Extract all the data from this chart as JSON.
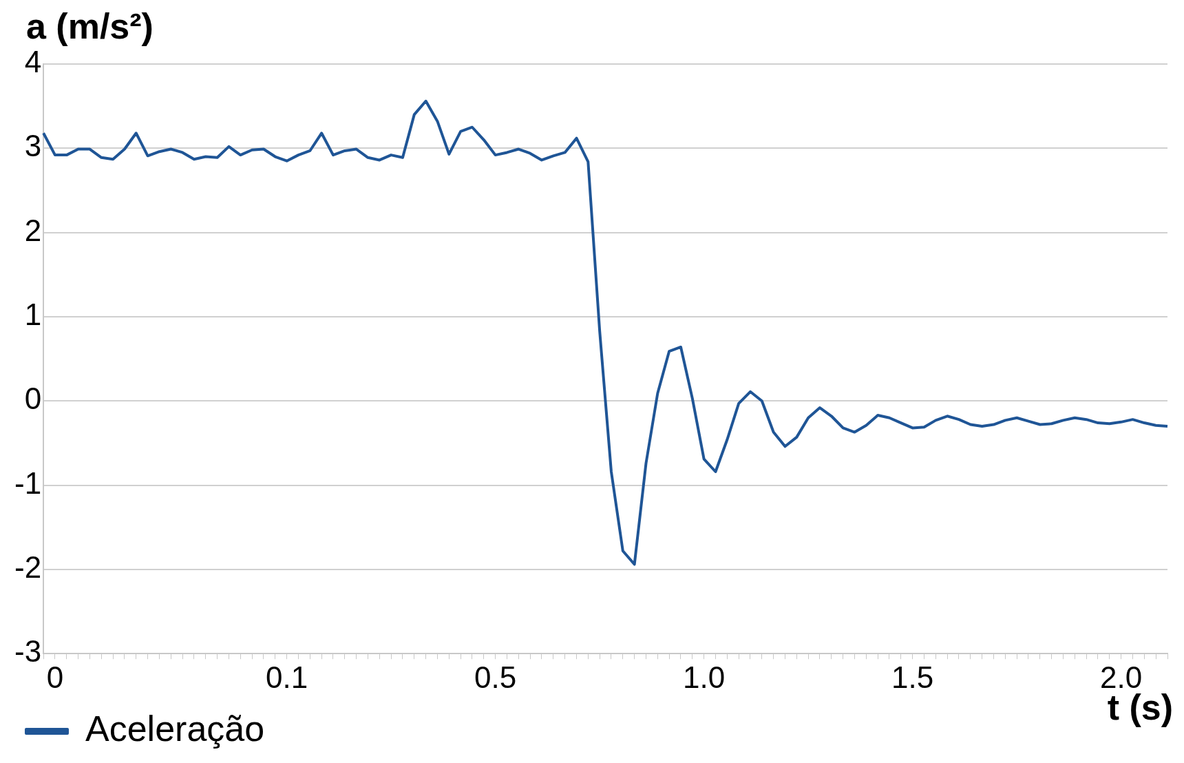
{
  "chart_data": {
    "type": "line",
    "xlabel": "t (s)",
    "ylabel": "a (m/s²)",
    "categories": [
      null,
      "0",
      null,
      null,
      null,
      null,
      null,
      null,
      null,
      null,
      null,
      null,
      null,
      null,
      null,
      null,
      null,
      null,
      null,
      null,
      null,
      "0.1",
      null,
      null,
      null,
      null,
      null,
      null,
      null,
      null,
      null,
      null,
      null,
      null,
      null,
      null,
      null,
      null,
      null,
      "0.5",
      null,
      null,
      null,
      null,
      null,
      null,
      null,
      null,
      null,
      null,
      null,
      null,
      null,
      null,
      null,
      null,
      null,
      "1.0",
      null,
      null,
      null,
      null,
      null,
      null,
      null,
      null,
      null,
      null,
      null,
      null,
      null,
      null,
      null,
      null,
      null,
      "1.5",
      null,
      null,
      null,
      null,
      null,
      null,
      null,
      null,
      null,
      null,
      null,
      null,
      null,
      null,
      null,
      null,
      null,
      "2.0",
      null,
      null,
      null,
      null
    ],
    "ylim": [
      -3,
      4
    ],
    "yticks": [
      -3,
      -2,
      -1,
      0,
      1,
      2,
      3,
      4
    ],
    "grid": "y",
    "legend": "bottom left",
    "marker": "none",
    "line_style": "solid",
    "series": [
      {
        "name": "Aceleração",
        "color": "#1f5596",
        "values": [
          3.18,
          2.92,
          2.92,
          2.99,
          2.99,
          2.89,
          2.87,
          2.99,
          3.18,
          2.91,
          2.96,
          2.99,
          2.95,
          2.87,
          2.9,
          2.89,
          3.02,
          2.92,
          2.98,
          2.99,
          2.9,
          2.85,
          2.92,
          2.97,
          3.18,
          2.92,
          2.97,
          2.99,
          2.89,
          2.86,
          2.92,
          2.89,
          3.4,
          3.56,
          3.32,
          2.93,
          3.2,
          3.25,
          3.1,
          2.92,
          2.95,
          2.99,
          2.94,
          2.86,
          2.91,
          2.95,
          3.12,
          2.84,
          0.83,
          -0.84,
          -1.78,
          -1.94,
          -0.74,
          0.09,
          0.59,
          0.64,
          0.03,
          -0.69,
          -0.84,
          -0.46,
          -0.03,
          0.11,
          0.0,
          -0.37,
          -0.54,
          -0.43,
          -0.2,
          -0.08,
          -0.18,
          -0.32,
          -0.37,
          -0.29,
          -0.17,
          -0.2,
          -0.26,
          -0.32,
          -0.31,
          -0.23,
          -0.18,
          -0.22,
          -0.28,
          -0.3,
          -0.28,
          -0.23,
          -0.2,
          -0.24,
          -0.28,
          -0.27,
          -0.23,
          -0.2,
          -0.22,
          -0.26,
          -0.27,
          -0.25,
          -0.22,
          -0.26,
          -0.29,
          -0.3
        ]
      }
    ]
  }
}
